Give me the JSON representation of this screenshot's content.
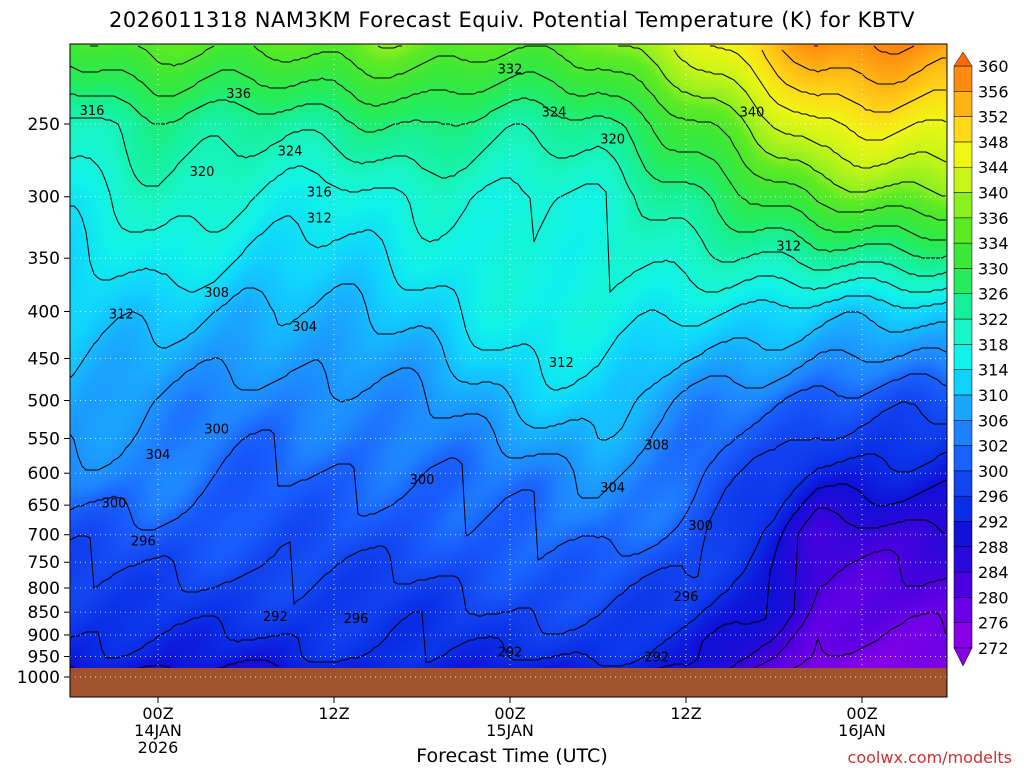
{
  "title": "2026011318 NAM3KM Forecast Equiv. Potential Temperature (K) for KBTV",
  "credit": "coolwx.com/modelts",
  "chart_data": {
    "type": "heatmap",
    "title": "2026011318 NAM3KM Forecast Equiv. Potential Temperature (K) for KBTV",
    "xlabel": "Forecast Time (UTC)",
    "ylabel": "",
    "y_axis": {
      "reversed": true,
      "ticks": [
        250,
        300,
        350,
        400,
        450,
        500,
        550,
        600,
        650,
        700,
        750,
        800,
        850,
        900,
        950,
        1000
      ]
    },
    "x_axis": {
      "range_hours": [
        -6,
        45
      ],
      "ticks": [
        {
          "hour": 0,
          "lines": [
            "00Z",
            "14JAN",
            "2026"
          ]
        },
        {
          "hour": 12,
          "lines": [
            "12Z"
          ]
        },
        {
          "hour": 24,
          "lines": [
            "00Z",
            "15JAN"
          ]
        },
        {
          "hour": 36,
          "lines": [
            "12Z"
          ]
        },
        {
          "hour": 48,
          "lines": [
            "00Z",
            "16JAN"
          ]
        }
      ]
    },
    "grid": true,
    "colorbar": {
      "placement": "right",
      "levels": [
        272,
        276,
        280,
        284,
        288,
        292,
        296,
        300,
        302,
        306,
        310,
        314,
        318,
        322,
        326,
        330,
        334,
        336,
        340,
        344,
        348,
        352,
        356,
        360
      ],
      "colors": [
        "#8a00e6",
        "#6b00e6",
        "#4a00e0",
        "#2a08d8",
        "#1010d8",
        "#0a2ee6",
        "#1244f0",
        "#1a62ff",
        "#1e82ff",
        "#1aa6ff",
        "#10d2ff",
        "#10f2ea",
        "#18f5c8",
        "#16f09a",
        "#24ec5c",
        "#3ae83a",
        "#5cea24",
        "#8cf020",
        "#c8f518",
        "#f0f514",
        "#ffd818",
        "#ffb414",
        "#ff8c10",
        "#ff6a08"
      ]
    },
    "series": [
      {
        "hours": [
          -6,
          0,
          6,
          12,
          18,
          24,
          30,
          36,
          42,
          45
        ],
        "equivalent_potential_temperature_K_by_pressure_hPa": {
          "250": [
            318,
            322,
            322,
            322,
            324,
            322,
            322,
            330,
            340,
            344
          ],
          "300": [
            314,
            318,
            316,
            314,
            316,
            316,
            316,
            322,
            330,
            334
          ],
          "400": [
            310,
            310,
            306,
            308,
            310,
            314,
            316,
            312,
            310,
            310
          ],
          "500": [
            306,
            304,
            302,
            302,
            304,
            308,
            310,
            304,
            300,
            298
          ],
          "600": [
            302,
            302,
            300,
            300,
            300,
            302,
            304,
            300,
            296,
            290
          ],
          "700": [
            298,
            298,
            298,
            298,
            298,
            300,
            302,
            298,
            290,
            282
          ],
          "850": [
            294,
            294,
            294,
            294,
            294,
            296,
            296,
            294,
            286,
            278
          ],
          "950": [
            290,
            290,
            290,
            292,
            292,
            292,
            292,
            290,
            282,
            274
          ]
        }
      }
    ],
    "contour_labels": [
      {
        "text": "332",
        "hour": 24,
        "p": 218
      },
      {
        "text": "336",
        "hour": 5.5,
        "p": 232
      },
      {
        "text": "324",
        "hour": 27,
        "p": 243
      },
      {
        "text": "340",
        "hour": 40.5,
        "p": 243
      },
      {
        "text": "316",
        "hour": -4.5,
        "p": 242
      },
      {
        "text": "324",
        "hour": 9,
        "p": 268
      },
      {
        "text": "320",
        "hour": 31,
        "p": 260
      },
      {
        "text": "320",
        "hour": 3,
        "p": 282
      },
      {
        "text": "316",
        "hour": 11,
        "p": 297
      },
      {
        "text": "312",
        "hour": 11,
        "p": 317
      },
      {
        "text": "312",
        "hour": 43,
        "p": 340
      },
      {
        "text": "308",
        "hour": 4,
        "p": 382
      },
      {
        "text": "312",
        "hour": -2.5,
        "p": 403
      },
      {
        "text": "304",
        "hour": 10,
        "p": 416
      },
      {
        "text": "312",
        "hour": 27.5,
        "p": 455
      },
      {
        "text": "300",
        "hour": 4,
        "p": 538
      },
      {
        "text": "308",
        "hour": 34,
        "p": 560
      },
      {
        "text": "304",
        "hour": 0,
        "p": 573
      },
      {
        "text": "300",
        "hour": 18,
        "p": 610
      },
      {
        "text": "304",
        "hour": 31,
        "p": 623
      },
      {
        "text": "300",
        "hour": -3,
        "p": 647
      },
      {
        "text": "300",
        "hour": 37,
        "p": 685
      },
      {
        "text": "296",
        "hour": -1,
        "p": 712
      },
      {
        "text": "296",
        "hour": 36,
        "p": 818
      },
      {
        "text": "292",
        "hour": 8,
        "p": 860
      },
      {
        "text": "296",
        "hour": 13.5,
        "p": 865
      },
      {
        "text": "292",
        "hour": 24,
        "p": 940
      },
      {
        "text": "292",
        "hour": 34,
        "p": 952
      }
    ]
  }
}
